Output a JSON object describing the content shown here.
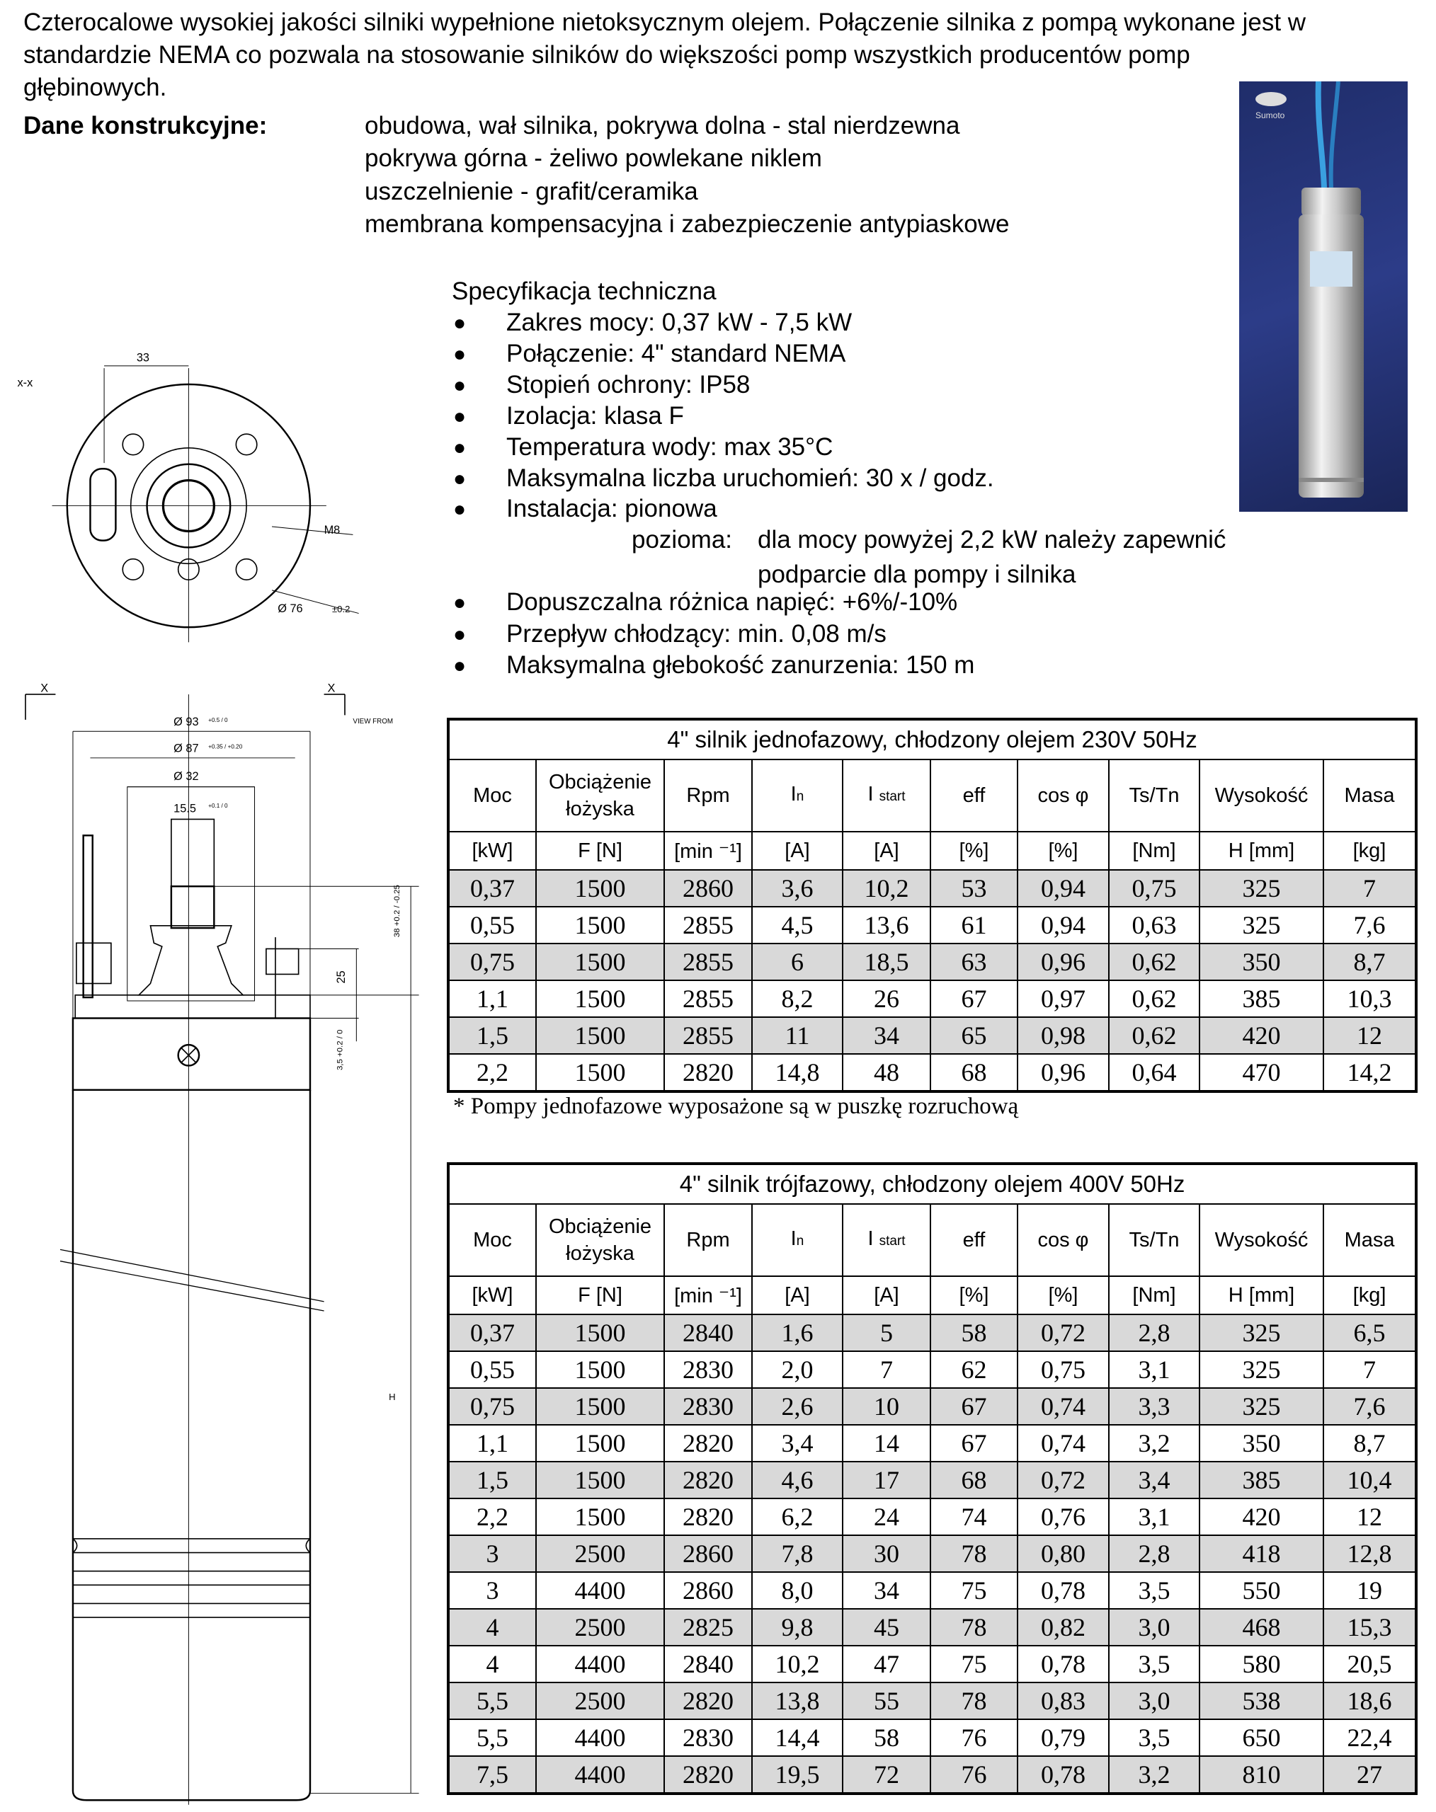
{
  "intro": {
    "lines": [
      "Czterocalowe wysokiej jakości silniki wypełnione nietoksycznym olejem. Połączenie silnika z pompą wykonane jest w",
      "standardzie NEMA co pozwala na stosowanie silników do większości pomp wszystkich producentów pomp",
      "głębinowych."
    ]
  },
  "construction": {
    "label": "Dane konstrukcyjne:",
    "items": [
      "obudowa, wał silnika, pokrywa dolna - stal nierdzewna",
      "pokrywa górna - żeliwo powlekane niklem",
      "uszczelnienie - grafit/ceramika",
      "membrana kompensacyjna i zabezpieczenie antypiaskowe"
    ]
  },
  "spec": {
    "title": "Specyfikacja techniczna",
    "bullet": "●",
    "items": [
      "Zakres mocy: 0,37 kW - 7,5 kW",
      "Połączenie: 4\" standard NEMA",
      "Stopień ochrony: IP58",
      "Izolacja: klasa F",
      "Temperatura wody: max 35°C",
      "Maksymalna liczba uruchomień: 30 x / godz.",
      "Instalacja: pionowa"
    ],
    "horizontal_label": "pozioma:",
    "horizontal_text_1": "dla mocy powyżej 2,2 kW należy zapewnić",
    "horizontal_text_2": "podparcie dla pompy i silnika",
    "items2": [
      "Dopuszczalna różnica napięć: +6%/-10%",
      "Przepływ chłodzący: min. 0,08 m/s",
      "Maksymalna głebokość zanurzenia: 150 m"
    ]
  },
  "photo": {
    "brand": "Sumoto"
  },
  "drawing": {
    "xx": "x-x",
    "d33": "33",
    "m8": "M8",
    "d76": "Ø 76",
    "d76tol": "±0.2",
    "x": "X",
    "view_from": "VIEW FROM",
    "d93": "Ø 93",
    "d93tol": "+0.5 / 0",
    "d87": "Ø 87",
    "d87tol": "+0.35 / +0.20",
    "d32": "Ø 32",
    "d155": "15.5",
    "d155tol": "+0.1 / 0",
    "d25": "25",
    "d38": "38 +0.2 / -0.25",
    "d35": "3,5 +0.2 / 0",
    "h": "H"
  },
  "headers": {
    "cols": [
      "Moc",
      "Obciążenie łożyska",
      "Rpm",
      "I",
      "I",
      "eff",
      "cos φ",
      "Ts/Tn",
      "Wysokość",
      "Masa"
    ],
    "subs": {
      "in": "n",
      "istart": "start"
    },
    "units": [
      "[kW]",
      "F [N]",
      "[min ⁻¹]",
      "[A]",
      "[A]",
      "[%]",
      "[%]",
      "[Nm]",
      "H [mm]",
      "[kg]"
    ]
  },
  "table1": {
    "title": "4\" silnik jednofazowy, chłodzony olejem 230V 50Hz",
    "rows": [
      [
        "0,37",
        "1500",
        "2860",
        "3,6",
        "10,2",
        "53",
        "0,94",
        "0,75",
        "325",
        "7"
      ],
      [
        "0,55",
        "1500",
        "2855",
        "4,5",
        "13,6",
        "61",
        "0,94",
        "0,63",
        "325",
        "7,6"
      ],
      [
        "0,75",
        "1500",
        "2855",
        "6",
        "18,5",
        "63",
        "0,96",
        "0,62",
        "350",
        "8,7"
      ],
      [
        "1,1",
        "1500",
        "2855",
        "8,2",
        "26",
        "67",
        "0,97",
        "0,62",
        "385",
        "10,3"
      ],
      [
        "1,5",
        "1500",
        "2855",
        "11",
        "34",
        "65",
        "0,98",
        "0,62",
        "420",
        "12"
      ],
      [
        "2,2",
        "1500",
        "2820",
        "14,8",
        "48",
        "68",
        "0,96",
        "0,64",
        "470",
        "14,2"
      ]
    ],
    "note": "* Pompy jednofazowe wyposażone są w puszkę rozruchową"
  },
  "table2": {
    "title": "4\" silnik trójfazowy, chłodzony olejem 400V 50Hz",
    "rows": [
      [
        "0,37",
        "1500",
        "2840",
        "1,6",
        "5",
        "58",
        "0,72",
        "2,8",
        "325",
        "6,5"
      ],
      [
        "0,55",
        "1500",
        "2830",
        "2,0",
        "7",
        "62",
        "0,75",
        "3,1",
        "325",
        "7"
      ],
      [
        "0,75",
        "1500",
        "2830",
        "2,6",
        "10",
        "67",
        "0,74",
        "3,3",
        "325",
        "7,6"
      ],
      [
        "1,1",
        "1500",
        "2820",
        "3,4",
        "14",
        "67",
        "0,74",
        "3,2",
        "350",
        "8,7"
      ],
      [
        "1,5",
        "1500",
        "2820",
        "4,6",
        "17",
        "68",
        "0,72",
        "3,4",
        "385",
        "10,4"
      ],
      [
        "2,2",
        "1500",
        "2820",
        "6,2",
        "24",
        "74",
        "0,76",
        "3,1",
        "420",
        "12"
      ],
      [
        "3",
        "2500",
        "2860",
        "7,8",
        "30",
        "78",
        "0,80",
        "2,8",
        "418",
        "12,8"
      ],
      [
        "3",
        "4400",
        "2860",
        "8,0",
        "34",
        "75",
        "0,78",
        "3,5",
        "550",
        "19"
      ],
      [
        "4",
        "2500",
        "2825",
        "9,8",
        "45",
        "78",
        "0,82",
        "3,0",
        "468",
        "15,3"
      ],
      [
        "4",
        "4400",
        "2840",
        "10,2",
        "47",
        "75",
        "0,78",
        "3,5",
        "580",
        "20,5"
      ],
      [
        "5,5",
        "2500",
        "2820",
        "13,8",
        "55",
        "78",
        "0,83",
        "3,0",
        "538",
        "18,6"
      ],
      [
        "5,5",
        "4400",
        "2830",
        "14,4",
        "58",
        "76",
        "0,79",
        "3,5",
        "650",
        "22,4"
      ],
      [
        "7,5",
        "4400",
        "2820",
        "19,5",
        "72",
        "76",
        "0,78",
        "3,2",
        "810",
        "27"
      ]
    ]
  },
  "colors": {
    "row_shade": "#d9d9d9",
    "photo_bg": "#2c3c88"
  }
}
